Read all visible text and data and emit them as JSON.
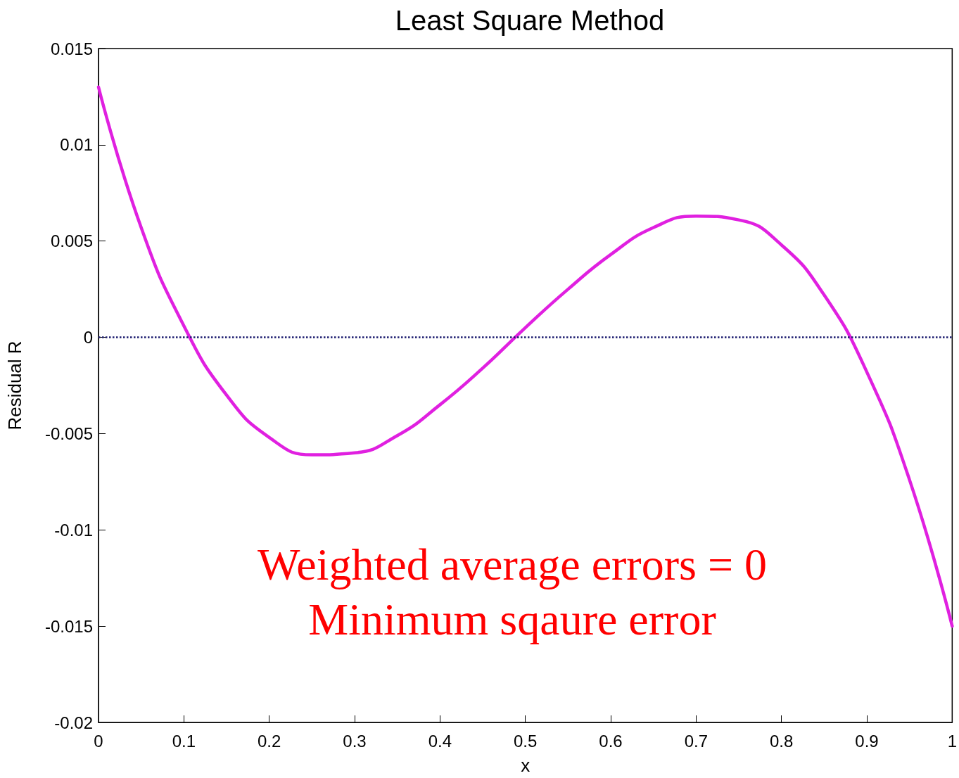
{
  "chart_data": {
    "type": "line",
    "title": "Least Square Method",
    "xlabel": "x",
    "ylabel": "Residual R",
    "x": [
      0,
      0.05,
      0.1,
      0.15,
      0.2,
      0.25,
      0.3,
      0.35,
      0.4,
      0.45,
      0.5,
      0.55,
      0.6,
      0.65,
      0.7,
      0.75,
      0.8,
      0.85,
      0.9,
      0.95,
      1
    ],
    "series": [
      {
        "color": "#e020e0",
        "values": [
          0.013,
          0.0057,
          0.0006,
          -0.003,
          -0.0052,
          -0.0061,
          -0.006,
          -0.0051,
          -0.0035,
          -0.0016,
          0.0005,
          0.0025,
          0.0043,
          0.0057,
          0.0063,
          0.0061,
          0.0048,
          0.0022,
          -0.0018,
          -0.0074,
          -0.015
        ]
      }
    ],
    "xlim": [
      0,
      1
    ],
    "xticks": [
      0,
      0.1,
      0.2,
      0.3,
      0.4,
      0.5,
      0.6,
      0.7,
      0.8,
      0.9,
      1
    ],
    "ylim": [
      -0.02,
      0.015
    ],
    "yticks": [
      -0.02,
      -0.015,
      -0.01,
      -0.005,
      0,
      0.005,
      0.01,
      0.015
    ],
    "ref_lines": [
      {
        "axis": "y",
        "value": 0,
        "color": "#1a1a6e",
        "line_style": "dotted"
      }
    ],
    "annotations": [
      "Weighted average errors = 0",
      "Minimum sqaure error"
    ],
    "grid": false,
    "marker": "none",
    "line_style": "solid"
  }
}
